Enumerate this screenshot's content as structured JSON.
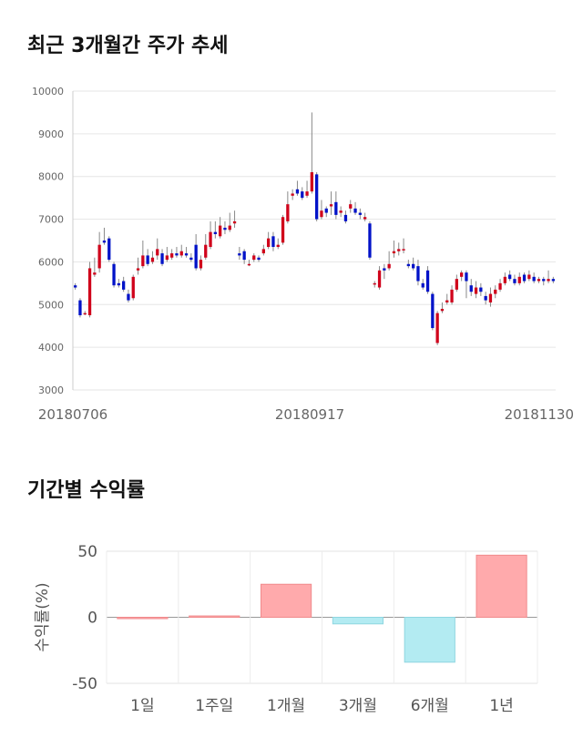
{
  "section1": {
    "title": "최근 3개월간 주가 추세"
  },
  "section2": {
    "title": "기간별 수익률"
  },
  "chart_data": [
    {
      "type": "candlestick",
      "ylim": [
        3000,
        10000
      ],
      "yticks": [
        "10000",
        "9000",
        "8000",
        "7000",
        "6000",
        "5000",
        "4000",
        "3000"
      ],
      "xtick_labels": [
        "20180706",
        "20180917",
        "20181130"
      ],
      "grid": true,
      "colors": {
        "up": "#d0021b",
        "down": "#0012c8",
        "wick": "#888888"
      },
      "candles": [
        [
          5450,
          5400,
          5500,
          5350
        ],
        [
          5100,
          4750,
          5150,
          4700
        ],
        [
          4800,
          4800,
          4850,
          4750
        ],
        [
          4750,
          5850,
          6000,
          4700
        ],
        [
          5700,
          5750,
          6100,
          5650
        ],
        [
          5850,
          6400,
          6700,
          5750
        ],
        [
          6500,
          6450,
          6800,
          6400
        ],
        [
          6550,
          6050,
          6600,
          6000
        ],
        [
          5950,
          5450,
          6000,
          5400
        ],
        [
          5500,
          5450,
          5600,
          5400
        ],
        [
          5550,
          5350,
          5650,
          5300
        ],
        [
          5250,
          5100,
          5350,
          5050
        ],
        [
          5150,
          5650,
          5700,
          5100
        ],
        [
          5800,
          5850,
          6100,
          5700
        ],
        [
          5900,
          6150,
          6500,
          5850
        ],
        [
          6150,
          5950,
          6300,
          5900
        ],
        [
          6000,
          6100,
          6250,
          5950
        ],
        [
          6150,
          6300,
          6550,
          6050
        ],
        [
          6200,
          5950,
          6300,
          5900
        ],
        [
          6050,
          6150,
          6350,
          6000
        ],
        [
          6100,
          6200,
          6300,
          6050
        ],
        [
          6200,
          6150,
          6350,
          6100
        ],
        [
          6150,
          6250,
          6400,
          6100
        ],
        [
          6200,
          6150,
          6350,
          6100
        ],
        [
          6100,
          6050,
          6200,
          6000
        ],
        [
          6400,
          5850,
          6650,
          5800
        ],
        [
          5850,
          6050,
          6150,
          5800
        ],
        [
          6100,
          6400,
          6650,
          6050
        ],
        [
          6350,
          6700,
          6950,
          6300
        ],
        [
          6700,
          6650,
          6950,
          6550
        ],
        [
          6600,
          6850,
          7050,
          6550
        ],
        [
          6800,
          6750,
          6950,
          6650
        ],
        [
          6750,
          6850,
          7150,
          6700
        ],
        [
          6900,
          6950,
          7200,
          6800
        ],
        [
          6200,
          6150,
          6350,
          6050
        ],
        [
          6250,
          6050,
          6300,
          5950
        ],
        [
          5950,
          5950,
          6050,
          5900
        ],
        [
          6050,
          6150,
          6200,
          6000
        ],
        [
          6100,
          6050,
          6150,
          6000
        ],
        [
          6200,
          6300,
          6400,
          6150
        ],
        [
          6350,
          6550,
          6700,
          6300
        ],
        [
          6600,
          6350,
          6700,
          6250
        ],
        [
          6350,
          6400,
          6550,
          6300
        ],
        [
          6450,
          7050,
          7100,
          6400
        ],
        [
          6950,
          7350,
          7650,
          6900
        ],
        [
          7550,
          7600,
          7700,
          7450
        ],
        [
          7700,
          7600,
          7900,
          7550
        ],
        [
          7650,
          7500,
          7750,
          7450
        ],
        [
          7550,
          7650,
          7900,
          7500
        ],
        [
          7650,
          8100,
          9500,
          7600
        ],
        [
          8050,
          7000,
          8100,
          6950
        ],
        [
          7050,
          7200,
          7450,
          7000
        ],
        [
          7250,
          7150,
          7300,
          7050
        ],
        [
          7300,
          7350,
          7650,
          7100
        ],
        [
          7400,
          7100,
          7650,
          7000
        ],
        [
          7150,
          7200,
          7300,
          7050
        ],
        [
          7100,
          6950,
          7200,
          6900
        ],
        [
          7250,
          7350,
          7450,
          7150
        ],
        [
          7250,
          7150,
          7400,
          7100
        ],
        [
          7150,
          7100,
          7250,
          7000
        ],
        [
          7000,
          7050,
          7150,
          6950
        ],
        [
          6900,
          6100,
          6950,
          6050
        ],
        [
          5500,
          5500,
          5550,
          5400
        ],
        [
          5400,
          5800,
          5900,
          5350
        ],
        [
          5850,
          5800,
          5950,
          5600
        ],
        [
          5850,
          5950,
          6250,
          5800
        ],
        [
          6200,
          6250,
          6500,
          6100
        ],
        [
          6250,
          6300,
          6450,
          6150
        ],
        [
          6300,
          6300,
          6550,
          6200
        ],
        [
          5950,
          5900,
          6050,
          5850
        ],
        [
          5950,
          5850,
          6100,
          5800
        ],
        [
          5900,
          5550,
          6050,
          5450
        ],
        [
          5500,
          5400,
          5600,
          5350
        ],
        [
          5800,
          5300,
          5900,
          5250
        ],
        [
          5250,
          4450,
          5300,
          4400
        ],
        [
          4100,
          4800,
          4850,
          4050
        ],
        [
          4850,
          4900,
          5050,
          4800
        ],
        [
          5050,
          5100,
          5250,
          5000
        ],
        [
          5050,
          5350,
          5450,
          5000
        ],
        [
          5350,
          5600,
          5700,
          5300
        ],
        [
          5650,
          5750,
          5800,
          5550
        ],
        [
          5750,
          5550,
          5800,
          5150
        ],
        [
          5450,
          5300,
          5600,
          5200
        ],
        [
          5250,
          5400,
          5550,
          5150
        ],
        [
          5400,
          5300,
          5500,
          5200
        ],
        [
          5200,
          5100,
          5300,
          5000
        ],
        [
          5050,
          5250,
          5400,
          4950
        ],
        [
          5250,
          5350,
          5450,
          5150
        ],
        [
          5350,
          5500,
          5600,
          5300
        ],
        [
          5500,
          5650,
          5750,
          5450
        ],
        [
          5700,
          5600,
          5800,
          5550
        ],
        [
          5600,
          5500,
          5700,
          5450
        ],
        [
          5500,
          5650,
          5750,
          5450
        ],
        [
          5700,
          5550,
          5750,
          5500
        ],
        [
          5600,
          5700,
          5800,
          5550
        ],
        [
          5650,
          5550,
          5750,
          5500
        ],
        [
          5550,
          5600,
          5650,
          5500
        ],
        [
          5600,
          5550,
          5650,
          5450
        ],
        [
          5550,
          5600,
          5800,
          5500
        ],
        [
          5600,
          5550,
          5650,
          5500
        ]
      ]
    },
    {
      "type": "bar",
      "categories": [
        "1일",
        "1주일",
        "1개월",
        "3개월",
        "6개월",
        "1년"
      ],
      "values": [
        0,
        1,
        25,
        -5,
        -34,
        47
      ],
      "ylabel": "수익률(%)",
      "ylim": [
        -50,
        50
      ],
      "yticks": [
        "50",
        "0",
        "-50"
      ],
      "colors": {
        "positive": "#ffaaac",
        "negative": "#b3ebf2"
      }
    }
  ]
}
